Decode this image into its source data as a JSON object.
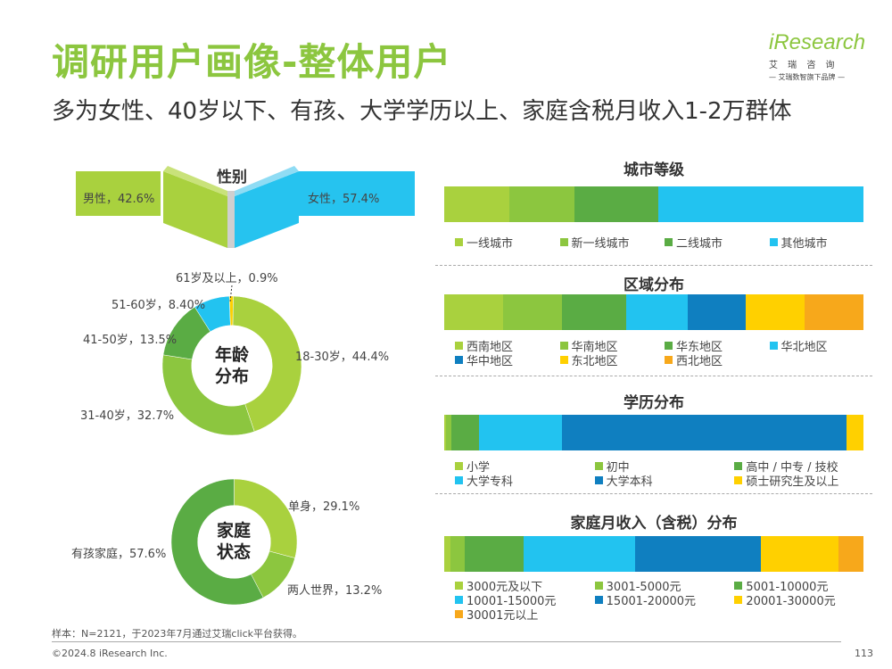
{
  "header": {
    "title": "调研用户画像-整体用户",
    "subtitle": "多为女性、40岁以下、有孩、大学学历以上、家庭含税月收入1-2万群体"
  },
  "logo": {
    "brand": "iResearch",
    "cn": "艾 瑞 咨 询",
    "tagline": "— 艾瑞数智旗下品牌 —"
  },
  "colors": {
    "c1": "#a9d13e",
    "c2": "#8cc63f",
    "c3": "#5aac44",
    "c4": "#22c3f0",
    "c5": "#0f7fc0",
    "c6": "#ffd000",
    "c7": "#f7a81b",
    "panel_blue": "#26c3ef"
  },
  "chart_data": [
    {
      "type": "pie",
      "title": "性别",
      "categories": [
        "男性",
        "女性"
      ],
      "values": [
        42.6,
        57.4
      ],
      "labels": [
        "男性，42.6%",
        "女性，57.4%"
      ]
    },
    {
      "type": "pie",
      "title": "年龄分布",
      "center_label": [
        "年龄",
        "分布"
      ],
      "categories": [
        "18-30岁",
        "31-40岁",
        "41-50岁",
        "51-60岁",
        "61岁及以上"
      ],
      "values": [
        44.4,
        32.7,
        13.5,
        8.4,
        0.9
      ],
      "labels": [
        "18-30岁，44.4%",
        "31-40岁，32.7%",
        "41-50岁，13.5%",
        "51-60岁，8.40%",
        "61岁及以上，0.9%"
      ]
    },
    {
      "type": "pie",
      "title": "家庭状态",
      "center_label": [
        "家庭",
        "状态"
      ],
      "categories": [
        "单身",
        "两人世界",
        "有孩家庭"
      ],
      "values": [
        29.1,
        13.2,
        57.6
      ],
      "labels": [
        "单身，29.1%",
        "两人世界，13.2%",
        "有孩家庭，57.6%"
      ]
    },
    {
      "type": "bar",
      "title": "城市等级",
      "stacked": true,
      "categories": [
        "一线城市",
        "新一线城市",
        "二线城市",
        "其他城市"
      ],
      "values": [
        15.5,
        15.5,
        20,
        49
      ]
    },
    {
      "type": "bar",
      "title": "区域分布",
      "stacked": true,
      "categories": [
        "西南地区",
        "华南地区",
        "华东地区",
        "华北地区",
        "华中地区",
        "东北地区",
        "西北地区"
      ],
      "values": [
        14,
        14,
        15.5,
        14.5,
        14,
        14,
        14
      ]
    },
    {
      "type": "bar",
      "title": "学历分布",
      "stacked": true,
      "categories": [
        "小学",
        "初中",
        "高中 / 中专 / 技校",
        "大学专科",
        "大学本科",
        "硕士研究生及以上"
      ],
      "values": [
        0.5,
        1.2,
        6.7,
        19.6,
        68,
        4
      ]
    },
    {
      "type": "bar",
      "title": "家庭月收入（含税）分布",
      "stacked": true,
      "categories": [
        "3000元及以下",
        "3001-5000元",
        "5001-10000元",
        "10001-15000元",
        "15001-20000元",
        "20001-30000元",
        "30001元以上"
      ],
      "values": [
        1.5,
        3.5,
        14,
        26.5,
        30,
        18.5,
        6
      ]
    }
  ],
  "footer": {
    "note": "样本：N=2121，于2023年7月通过艾瑞click平台获得。",
    "copyright": "©2024.8 iResearch Inc.",
    "page": "113"
  }
}
